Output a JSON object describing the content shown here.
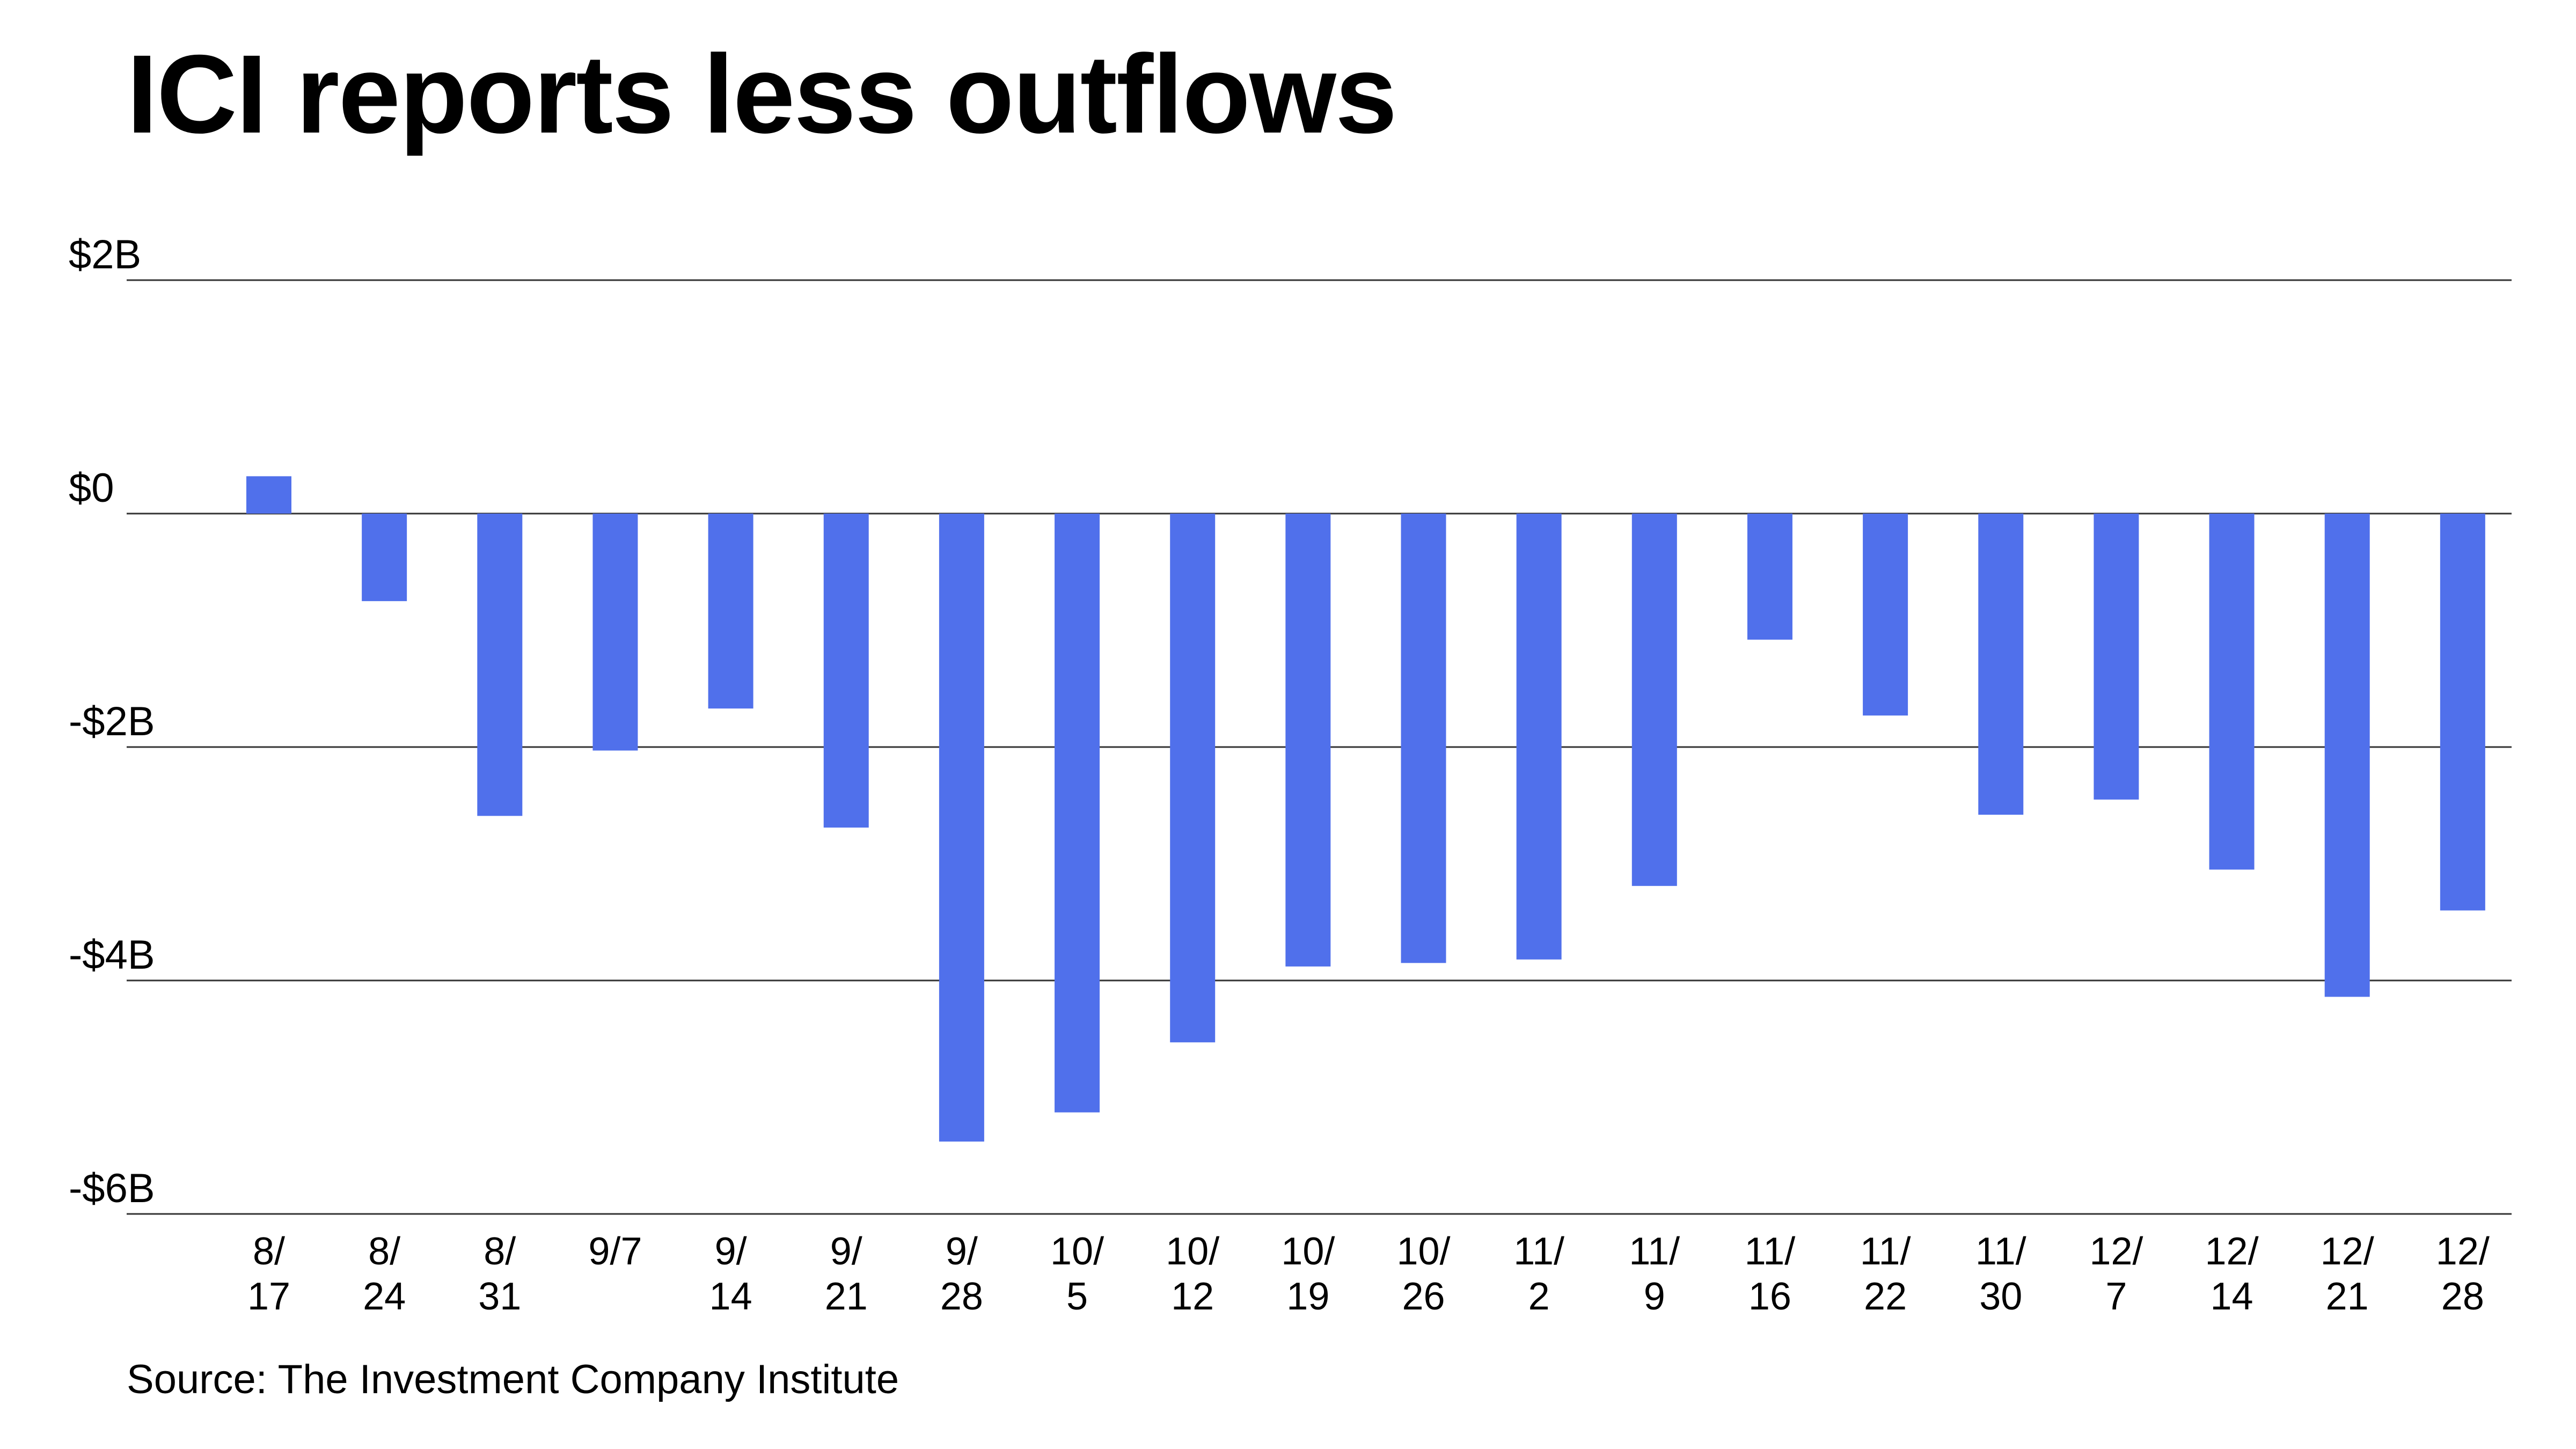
{
  "chart_data": {
    "type": "bar",
    "title": "ICI reports less outflows",
    "source": "Source: The Investment Company Institute",
    "categories": [
      [
        "8/",
        "17"
      ],
      [
        "8/",
        "24"
      ],
      [
        "8/",
        "31"
      ],
      [
        "9/7",
        ""
      ],
      [
        "9/",
        "14"
      ],
      [
        "9/",
        "21"
      ],
      [
        "9/",
        "28"
      ],
      [
        "10/",
        "5"
      ],
      [
        "10/",
        "12"
      ],
      [
        "10/",
        "19"
      ],
      [
        "10/",
        "26"
      ],
      [
        "11/",
        "2"
      ],
      [
        "11/",
        "9"
      ],
      [
        "11/",
        "16"
      ],
      [
        "11/",
        "22"
      ],
      [
        "11/",
        "30"
      ],
      [
        "12/",
        "7"
      ],
      [
        "12/",
        "14"
      ],
      [
        "12/",
        "21"
      ],
      [
        "12/",
        "28"
      ]
    ],
    "values": [
      0.32,
      -0.75,
      -2.59,
      -2.03,
      -1.67,
      -2.69,
      -5.38,
      -5.13,
      -4.53,
      -3.88,
      -3.85,
      -3.82,
      -3.19,
      -1.08,
      -1.73,
      -2.58,
      -2.45,
      -3.05,
      -4.14,
      -3.4
    ],
    "unit": "billions of dollars",
    "ylim": [
      -6,
      2
    ],
    "yticks": [
      2,
      0,
      -2,
      -4,
      -6
    ],
    "ytick_labels": [
      "$2B",
      "$0",
      "-$2B",
      "-$4B",
      "-$6B"
    ],
    "xlabel": "",
    "ylabel": "",
    "grid": true,
    "legend": "none",
    "colors": {
      "bar": "#5070EB",
      "gridline": "#333333",
      "text": "#000000"
    }
  }
}
